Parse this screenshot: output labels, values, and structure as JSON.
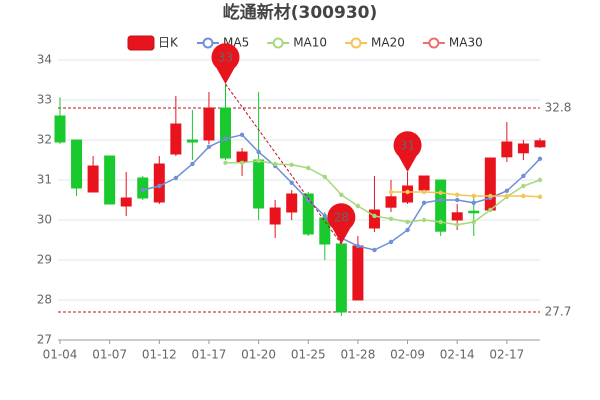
{
  "chart_data": {
    "type": "candlestick",
    "title": "屹通新材(300930)",
    "categories": [
      "01-04",
      null,
      null,
      "01-07",
      null,
      null,
      "01-12",
      null,
      null,
      "01-17",
      null,
      null,
      "01-20",
      null,
      null,
      "01-25",
      null,
      null,
      "01-28",
      null,
      null,
      "02-09",
      null,
      null,
      "02-14",
      null,
      null,
      "02-17",
      null,
      null
    ],
    "candles": {
      "name": "日K",
      "up_color": "#e8131c",
      "down_color": "#19c92e",
      "open": [
        32.6,
        32.0,
        30.7,
        31.6,
        30.35,
        31.05,
        30.45,
        31.65,
        32.0,
        32.0,
        32.8,
        31.45,
        31.5,
        29.9,
        30.2,
        30.65,
        30.05,
        29.4,
        28.0,
        29.8,
        30.32,
        30.45,
        30.75,
        31.0,
        30.0,
        30.22,
        30.25,
        31.58,
        31.68,
        31.83
      ],
      "close": [
        31.95,
        30.8,
        31.35,
        30.4,
        30.55,
        30.55,
        31.4,
        32.4,
        31.95,
        32.8,
        31.55,
        31.7,
        30.3,
        30.3,
        30.65,
        29.65,
        29.4,
        27.7,
        29.35,
        30.25,
        30.58,
        30.85,
        31.1,
        29.72,
        30.18,
        30.18,
        31.55,
        31.95,
        31.9,
        31.98
      ],
      "high": [
        33.07,
        32.0,
        31.6,
        31.6,
        31.2,
        31.1,
        31.6,
        33.1,
        32.75,
        33.2,
        33.4,
        31.8,
        33.2,
        30.5,
        30.75,
        30.7,
        30.2,
        29.4,
        29.6,
        31.1,
        31.0,
        31.2,
        31.1,
        31.0,
        30.4,
        30.6,
        31.55,
        32.45,
        32.0,
        32.05
      ],
      "low": [
        31.9,
        30.6,
        30.7,
        30.4,
        30.1,
        30.5,
        30.4,
        31.6,
        31.5,
        31.9,
        31.5,
        31.1,
        30.0,
        29.55,
        30.0,
        29.6,
        29.0,
        27.6,
        28.0,
        29.7,
        30.2,
        30.4,
        30.75,
        29.6,
        29.75,
        29.6,
        30.2,
        31.45,
        31.5,
        31.8
      ]
    },
    "series": [
      {
        "name": "MA5",
        "color": "#6f8fda",
        "values": [
          null,
          null,
          null,
          null,
          null,
          30.75,
          30.85,
          31.05,
          31.4,
          31.83,
          32.03,
          32.13,
          31.7,
          31.35,
          30.93,
          30.5,
          30.1,
          29.55,
          29.35,
          29.25,
          29.45,
          29.75,
          30.43,
          30.5,
          30.5,
          30.43,
          30.55,
          30.73,
          31.1,
          31.53
        ]
      },
      {
        "name": "MA10",
        "color": "#a6d87c",
        "values": [
          null,
          null,
          null,
          null,
          null,
          null,
          null,
          null,
          null,
          null,
          31.43,
          31.43,
          31.48,
          31.4,
          31.38,
          31.3,
          31.08,
          30.63,
          30.35,
          30.1,
          30.03,
          29.95,
          30.0,
          29.95,
          29.88,
          29.95,
          30.25,
          30.58,
          30.85,
          31.0
        ]
      },
      {
        "name": "MA20",
        "color": "#f5c452",
        "values": [
          null,
          null,
          null,
          null,
          null,
          null,
          null,
          null,
          null,
          null,
          null,
          null,
          null,
          null,
          null,
          null,
          null,
          null,
          null,
          null,
          30.7,
          30.7,
          30.7,
          30.68,
          30.63,
          30.6,
          30.6,
          30.6,
          30.6,
          30.58
        ]
      },
      {
        "name": "MA30",
        "color": "#ee6e6e",
        "values": [
          null,
          null,
          null,
          null,
          null,
          null,
          null,
          null,
          null,
          null,
          null,
          null,
          null,
          null,
          null,
          null,
          null,
          null,
          null,
          null,
          null,
          null,
          null,
          null,
          null,
          null,
          null,
          null,
          null,
          null
        ]
      }
    ],
    "ref_lines": [
      32.8,
      27.7
    ],
    "annotations": [
      {
        "candle": 10,
        "value": 33
      },
      {
        "candle": 21,
        "value": 31
      },
      {
        "candle": 17,
        "value": 28
      }
    ],
    "ylim": [
      27,
      34
    ],
    "yticks": [
      27,
      28,
      29,
      30,
      31,
      32,
      33,
      34
    ],
    "grid": true
  }
}
